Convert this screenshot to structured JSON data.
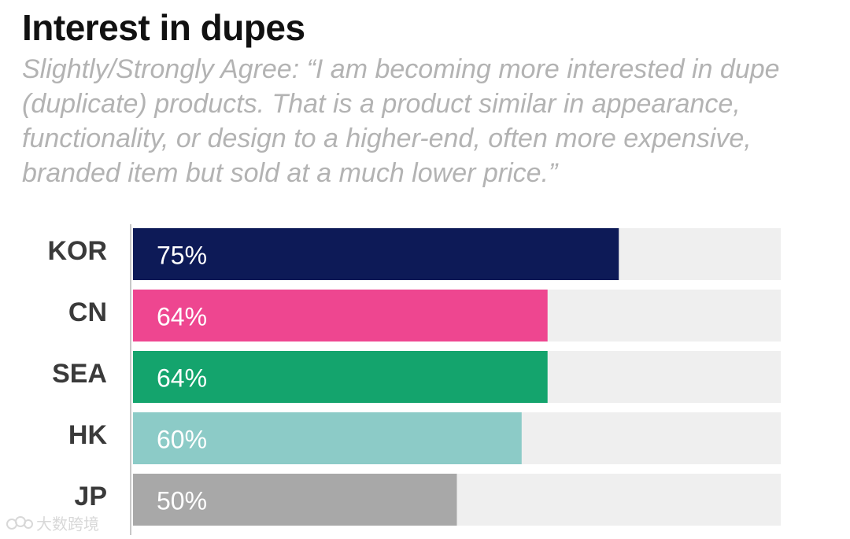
{
  "chart_data": {
    "type": "bar",
    "orientation": "horizontal",
    "title": "Interest in dupes",
    "subtitle": "Slightly/Strongly Agree: “I am becoming more interested in dupe (duplicate) products. That is a product similar in appearance, functionality, or design to a higher-end, often more expensive, branded item but sold at a much lower price.”",
    "categories": [
      "KOR",
      "CN",
      "SEA",
      "HK",
      "JP"
    ],
    "values": [
      75,
      64,
      64,
      60,
      50
    ],
    "value_labels": [
      "75%",
      "64%",
      "64%",
      "60%",
      "50%"
    ],
    "colors": [
      "#0d1a57",
      "#ee4690",
      "#14a46d",
      "#8ccbc7",
      "#a8a8a8"
    ],
    "track_color": "#efefef",
    "xlim": [
      0,
      100
    ],
    "xlabel": "",
    "ylabel": "",
    "grid": false
  },
  "watermark": {
    "icon": "watermark-logo-icon",
    "text": "大数跨境"
  }
}
